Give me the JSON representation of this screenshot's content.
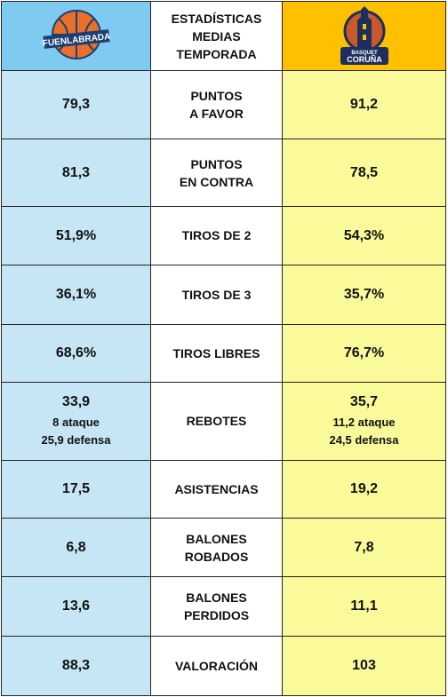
{
  "header": {
    "title_lines": [
      "ESTADÍSTICAS",
      "MEDIAS",
      "TEMPORADA"
    ],
    "home_logo_text": "FUENLABRADA",
    "away_logo_text_top": "BASQUET",
    "away_logo_text_bottom": "CORUÑA"
  },
  "colors": {
    "home_header": "#7fcaf1",
    "home_cell": "#c6e6f6",
    "away_header": "#ffc000",
    "away_cell": "#fbfa9b"
  },
  "rows": [
    {
      "label_lines": [
        "PUNTOS",
        "A FAVOR"
      ],
      "home": "79,3",
      "away": "91,2"
    },
    {
      "label_lines": [
        "PUNTOS",
        "EN CONTRA"
      ],
      "home": "81,3",
      "away": "78,5"
    },
    {
      "label_lines": [
        "TIROS DE 2"
      ],
      "home": "51,9%",
      "away": "54,3%"
    },
    {
      "label_lines": [
        "TIROS DE 3"
      ],
      "home": "36,1%",
      "away": "35,7%"
    },
    {
      "label_lines": [
        "TIROS LIBRES"
      ],
      "home": "68,6%",
      "away": "76,7%"
    },
    {
      "label_lines": [
        "REBOTES"
      ],
      "home": "33,9",
      "home_sub1": "8 ataque",
      "home_sub2": "25,9 defensa",
      "away": "35,7",
      "away_sub1": "11,2 ataque",
      "away_sub2": "24,5 defensa"
    },
    {
      "label_lines": [
        "ASISTENCIAS"
      ],
      "home": "17,5",
      "away": "19,2"
    },
    {
      "label_lines": [
        "BALONES",
        "ROBADOS"
      ],
      "home": "6,8",
      "away": "7,8"
    },
    {
      "label_lines": [
        "BALONES",
        "PERDIDOS"
      ],
      "home": "13,6",
      "away": "11,1"
    },
    {
      "label_lines": [
        "VALORACIÓN"
      ],
      "home": "88,3",
      "away": "103"
    }
  ]
}
